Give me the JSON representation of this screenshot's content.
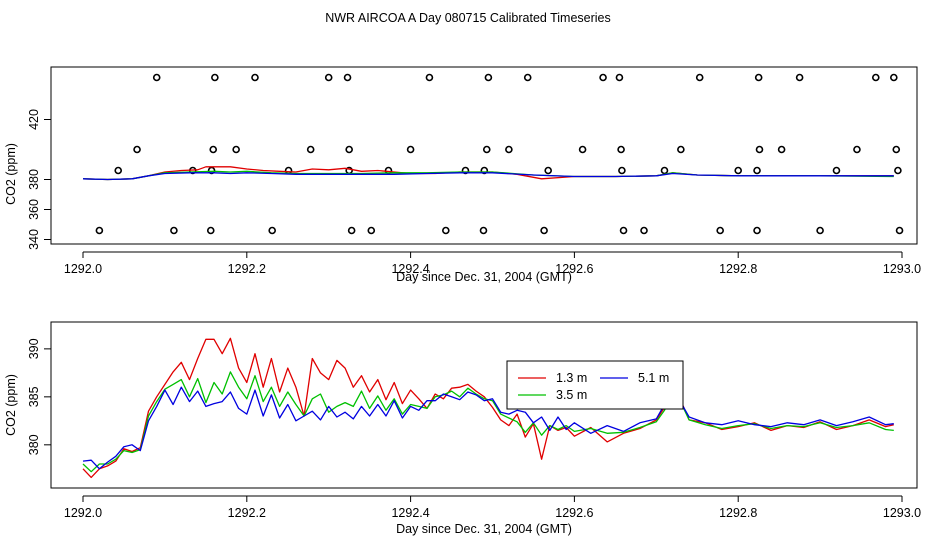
{
  "figure_title": "NWR AIRCOA A  Day 080715  Calibrated Timeseries",
  "chart_data": [
    {
      "type": "scatter+line",
      "name": "top-panel",
      "xlabel": "Day since Dec. 31, 2004 (GMT)",
      "ylabel": "CO2 (ppm)",
      "xlim": [
        1292.0,
        1293.0
      ],
      "ylim": [
        337,
        455
      ],
      "x_ticks": [
        1292.0,
        1292.2,
        1292.4,
        1292.6,
        1292.8,
        1293.0
      ],
      "x_tick_labels": [
        "1292.0",
        "1292.2",
        "1292.4",
        "1292.6",
        "1292.8",
        "1293.0"
      ],
      "y_ticks": [
        340,
        360,
        380,
        420
      ],
      "y_tick_labels": [
        "340",
        "360",
        "380",
        "420"
      ],
      "markers": {
        "style": "open-circle",
        "levels": [
          {
            "y": 448,
            "x": [
              1292.09,
              1292.161,
              1292.21,
              1292.3,
              1292.323,
              1292.423,
              1292.495,
              1292.543,
              1292.635,
              1292.655,
              1292.753,
              1292.825,
              1292.875,
              1292.968,
              1292.99
            ]
          },
          {
            "y": 400,
            "x": [
              1292.066,
              1292.159,
              1292.187,
              1292.278,
              1292.325,
              1292.4,
              1292.493,
              1292.52,
              1292.61,
              1292.657,
              1292.73,
              1292.826,
              1292.853,
              1292.945,
              1292.993
            ]
          },
          {
            "y": 386,
            "x": [
              1292.043,
              1292.134,
              1292.157,
              1292.251,
              1292.325,
              1292.373,
              1292.467,
              1292.49,
              1292.568,
              1292.658,
              1292.71,
              1292.8,
              1292.823,
              1292.92,
              1292.995
            ]
          },
          {
            "y": 346,
            "x": [
              1292.02,
              1292.111,
              1292.156,
              1292.231,
              1292.328,
              1292.352,
              1292.443,
              1292.489,
              1292.563,
              1292.66,
              1292.685,
              1292.778,
              1292.823,
              1292.9,
              1292.997
            ]
          }
        ]
      },
      "series": [
        {
          "name": "1.3 m",
          "color": "#e00000",
          "x": [
            1292.0,
            1292.03,
            1292.06,
            1292.08,
            1292.1,
            1292.12,
            1292.14,
            1292.15,
            1292.17,
            1292.18,
            1292.2,
            1292.22,
            1292.24,
            1292.26,
            1292.28,
            1292.3,
            1292.32,
            1292.34,
            1292.36,
            1292.38,
            1292.4,
            1292.43,
            1292.46,
            1292.5,
            1292.53,
            1292.56,
            1292.6,
            1292.65,
            1292.7,
            1292.72,
            1292.75,
            1292.8,
            1292.9,
            1292.99
          ],
          "y": [
            380.5,
            380.0,
            380.5,
            382.5,
            385.0,
            386.0,
            386.5,
            388.5,
            388.5,
            388.5,
            387.0,
            386.0,
            385.5,
            385.0,
            387.0,
            386.5,
            387.5,
            385.5,
            386.0,
            385.0,
            384.0,
            384.0,
            385.0,
            385.0,
            383.5,
            380.5,
            382.0,
            382.0,
            382.5,
            384.5,
            383.0,
            382.5,
            382.5,
            382.5
          ]
        },
        {
          "name": "3.5 m",
          "color": "#00c000",
          "x": [
            1292.0,
            1292.03,
            1292.06,
            1292.08,
            1292.1,
            1292.13,
            1292.16,
            1292.18,
            1292.2,
            1292.23,
            1292.26,
            1292.3,
            1292.34,
            1292.38,
            1292.42,
            1292.46,
            1292.5,
            1292.55,
            1292.6,
            1292.65,
            1292.7,
            1292.72,
            1292.75,
            1292.8,
            1292.9,
            1292.99
          ],
          "y": [
            380.5,
            380.0,
            380.5,
            382.5,
            384.5,
            385.0,
            385.5,
            385.0,
            385.5,
            384.5,
            384.0,
            384.0,
            384.0,
            384.5,
            384.5,
            385.0,
            385.0,
            383.0,
            382.0,
            382.0,
            382.5,
            384.5,
            383.0,
            382.5,
            382.5,
            382.0
          ]
        },
        {
          "name": "5.1 m",
          "color": "#0000e0",
          "x": [
            1292.0,
            1292.03,
            1292.06,
            1292.08,
            1292.1,
            1292.13,
            1292.16,
            1292.18,
            1292.2,
            1292.23,
            1292.26,
            1292.3,
            1292.34,
            1292.38,
            1292.42,
            1292.46,
            1292.5,
            1292.55,
            1292.6,
            1292.65,
            1292.7,
            1292.72,
            1292.75,
            1292.8,
            1292.9,
            1292.99
          ],
          "y": [
            380.5,
            380.0,
            380.5,
            382.5,
            384.0,
            384.5,
            384.5,
            384.0,
            384.5,
            384.0,
            383.5,
            383.5,
            383.5,
            383.5,
            384.0,
            384.5,
            384.5,
            383.0,
            382.0,
            382.0,
            382.5,
            384.0,
            383.0,
            382.5,
            382.5,
            382.5
          ]
        }
      ]
    },
    {
      "type": "line",
      "name": "bottom-panel",
      "xlabel": "Day since Dec. 31, 2004 (GMT)",
      "ylabel": "CO2 (ppm)",
      "xlim": [
        1292.0,
        1293.0
      ],
      "ylim": [
        375.5,
        392.8
      ],
      "x_ticks": [
        1292.0,
        1292.2,
        1292.4,
        1292.6,
        1292.8,
        1293.0
      ],
      "x_tick_labels": [
        "1292.0",
        "1292.2",
        "1292.4",
        "1292.6",
        "1292.8",
        "1293.0"
      ],
      "y_ticks": [
        380,
        385,
        390
      ],
      "y_tick_labels": [
        "380",
        "385",
        "390"
      ],
      "legend": {
        "position": "center-right",
        "entries": [
          {
            "label": "1.3 m",
            "color": "#e00000"
          },
          {
            "label": "5.1 m",
            "color": "#0000e0"
          },
          {
            "label": "3.5 m",
            "color": "#00c000"
          }
        ]
      },
      "series": [
        {
          "name": "1.3 m",
          "color": "#e00000",
          "x": [
            1292.0,
            1292.01,
            1292.02,
            1292.03,
            1292.04,
            1292.05,
            1292.06,
            1292.07,
            1292.08,
            1292.09,
            1292.1,
            1292.11,
            1292.12,
            1292.13,
            1292.14,
            1292.15,
            1292.16,
            1292.17,
            1292.18,
            1292.19,
            1292.2,
            1292.21,
            1292.22,
            1292.23,
            1292.24,
            1292.25,
            1292.26,
            1292.27,
            1292.28,
            1292.29,
            1292.3,
            1292.31,
            1292.32,
            1292.33,
            1292.34,
            1292.35,
            1292.36,
            1292.37,
            1292.38,
            1292.39,
            1292.4,
            1292.41,
            1292.42,
            1292.43,
            1292.44,
            1292.45,
            1292.46,
            1292.47,
            1292.48,
            1292.49,
            1292.5,
            1292.51,
            1292.52,
            1292.53,
            1292.54,
            1292.55,
            1292.56,
            1292.57,
            1292.58,
            1292.59,
            1292.6,
            1292.62,
            1292.64,
            1292.66,
            1292.68,
            1292.7,
            1292.71,
            1292.72,
            1292.73,
            1292.74,
            1292.76,
            1292.78,
            1292.8,
            1292.82,
            1292.84,
            1292.86,
            1292.88,
            1292.9,
            1292.92,
            1292.94,
            1292.96,
            1292.98,
            1292.99
          ],
          "y": [
            377.5,
            376.6,
            377.5,
            377.8,
            378.3,
            379.6,
            379.3,
            379.7,
            383.5,
            385.0,
            386.3,
            387.6,
            388.6,
            386.8,
            389.0,
            391.0,
            391.0,
            389.5,
            391.1,
            388.0,
            386.5,
            389.5,
            386.0,
            389.0,
            385.5,
            388.0,
            386.0,
            383.0,
            389.0,
            387.5,
            386.8,
            388.8,
            388.0,
            386.0,
            387.2,
            385.5,
            386.8,
            384.7,
            386.5,
            384.3,
            385.7,
            384.8,
            383.8,
            385.3,
            384.8,
            385.9,
            386.0,
            386.3,
            385.6,
            385.0,
            383.9,
            382.6,
            382.0,
            383.2,
            380.8,
            382.2,
            378.5,
            382.0,
            381.5,
            381.8,
            380.9,
            381.8,
            380.3,
            381.2,
            381.7,
            382.6,
            383.9,
            386.4,
            384.6,
            382.6,
            382.3,
            381.6,
            381.9,
            382.3,
            381.5,
            382.0,
            381.8,
            382.4,
            381.6,
            382.0,
            382.6,
            381.9,
            382.1
          ]
        },
        {
          "name": "3.5 m",
          "color": "#00c000",
          "x": [
            1292.0,
            1292.01,
            1292.02,
            1292.03,
            1292.04,
            1292.05,
            1292.06,
            1292.07,
            1292.08,
            1292.09,
            1292.1,
            1292.11,
            1292.12,
            1292.13,
            1292.14,
            1292.15,
            1292.16,
            1292.17,
            1292.18,
            1292.19,
            1292.2,
            1292.21,
            1292.22,
            1292.23,
            1292.24,
            1292.25,
            1292.26,
            1292.27,
            1292.28,
            1292.29,
            1292.3,
            1292.31,
            1292.32,
            1292.33,
            1292.34,
            1292.35,
            1292.36,
            1292.37,
            1292.38,
            1292.39,
            1292.4,
            1292.41,
            1292.42,
            1292.43,
            1292.44,
            1292.45,
            1292.46,
            1292.47,
            1292.48,
            1292.49,
            1292.5,
            1292.51,
            1292.52,
            1292.53,
            1292.54,
            1292.55,
            1292.56,
            1292.57,
            1292.58,
            1292.59,
            1292.6,
            1292.62,
            1292.64,
            1292.66,
            1292.68,
            1292.7,
            1292.71,
            1292.72,
            1292.73,
            1292.74,
            1292.76,
            1292.78,
            1292.8,
            1292.82,
            1292.84,
            1292.86,
            1292.88,
            1292.9,
            1292.92,
            1292.94,
            1292.96,
            1292.98,
            1292.99
          ],
          "y": [
            378.0,
            377.2,
            378.0,
            378.0,
            378.5,
            379.4,
            379.2,
            379.5,
            383.0,
            384.5,
            385.8,
            386.3,
            386.8,
            385.0,
            386.9,
            384.4,
            386.5,
            385.3,
            387.6,
            386.0,
            384.8,
            387.2,
            384.5,
            386.0,
            384.0,
            385.5,
            384.2,
            383.0,
            384.8,
            385.3,
            383.4,
            384.0,
            384.4,
            384.0,
            385.6,
            383.8,
            385.1,
            383.6,
            384.8,
            383.2,
            384.2,
            384.0,
            383.8,
            385.0,
            385.2,
            385.6,
            385.0,
            385.9,
            385.3,
            384.8,
            384.6,
            383.2,
            382.8,
            382.4,
            381.3,
            382.3,
            381.0,
            382.0,
            381.6,
            382.0,
            381.4,
            381.7,
            381.2,
            381.3,
            381.8,
            382.4,
            383.6,
            385.4,
            384.4,
            382.6,
            382.1,
            381.7,
            382.0,
            382.2,
            381.7,
            382.0,
            381.9,
            382.3,
            381.8,
            382.0,
            382.3,
            381.6,
            381.5
          ]
        },
        {
          "name": "5.1 m",
          "color": "#0000e0",
          "x": [
            1292.0,
            1292.01,
            1292.02,
            1292.03,
            1292.04,
            1292.05,
            1292.06,
            1292.07,
            1292.08,
            1292.09,
            1292.1,
            1292.11,
            1292.12,
            1292.13,
            1292.14,
            1292.15,
            1292.16,
            1292.17,
            1292.18,
            1292.19,
            1292.2,
            1292.21,
            1292.22,
            1292.23,
            1292.24,
            1292.25,
            1292.26,
            1292.27,
            1292.28,
            1292.29,
            1292.3,
            1292.31,
            1292.32,
            1292.33,
            1292.34,
            1292.35,
            1292.36,
            1292.37,
            1292.38,
            1292.39,
            1292.4,
            1292.41,
            1292.42,
            1292.43,
            1292.44,
            1292.45,
            1292.46,
            1292.47,
            1292.48,
            1292.49,
            1292.5,
            1292.51,
            1292.52,
            1292.53,
            1292.54,
            1292.55,
            1292.56,
            1292.57,
            1292.58,
            1292.59,
            1292.6,
            1292.62,
            1292.64,
            1292.66,
            1292.68,
            1292.7,
            1292.71,
            1292.72,
            1292.73,
            1292.74,
            1292.76,
            1292.78,
            1292.8,
            1292.82,
            1292.84,
            1292.86,
            1292.88,
            1292.9,
            1292.92,
            1292.94,
            1292.96,
            1292.98,
            1292.99
          ],
          "y": [
            378.3,
            378.4,
            377.5,
            378.2,
            378.8,
            379.8,
            380.0,
            379.4,
            382.5,
            384.0,
            385.7,
            384.2,
            386.0,
            384.5,
            385.6,
            384.0,
            384.3,
            384.5,
            385.5,
            383.8,
            383.2,
            385.7,
            383.0,
            385.2,
            382.8,
            384.2,
            382.5,
            383.0,
            383.5,
            382.6,
            384.0,
            382.9,
            383.4,
            382.7,
            384.0,
            383.0,
            384.2,
            383.0,
            384.6,
            382.8,
            384.0,
            383.6,
            384.6,
            384.6,
            385.3,
            385.0,
            384.7,
            385.5,
            385.2,
            384.6,
            384.8,
            383.4,
            383.2,
            383.6,
            383.4,
            382.3,
            382.9,
            381.5,
            382.9,
            381.6,
            382.3,
            381.2,
            382.0,
            381.4,
            382.3,
            382.7,
            384.2,
            386.6,
            384.4,
            382.9,
            382.3,
            382.1,
            382.5,
            382.1,
            381.9,
            382.3,
            382.1,
            382.6,
            382.0,
            382.4,
            382.9,
            382.1,
            382.2
          ]
        }
      ]
    }
  ]
}
